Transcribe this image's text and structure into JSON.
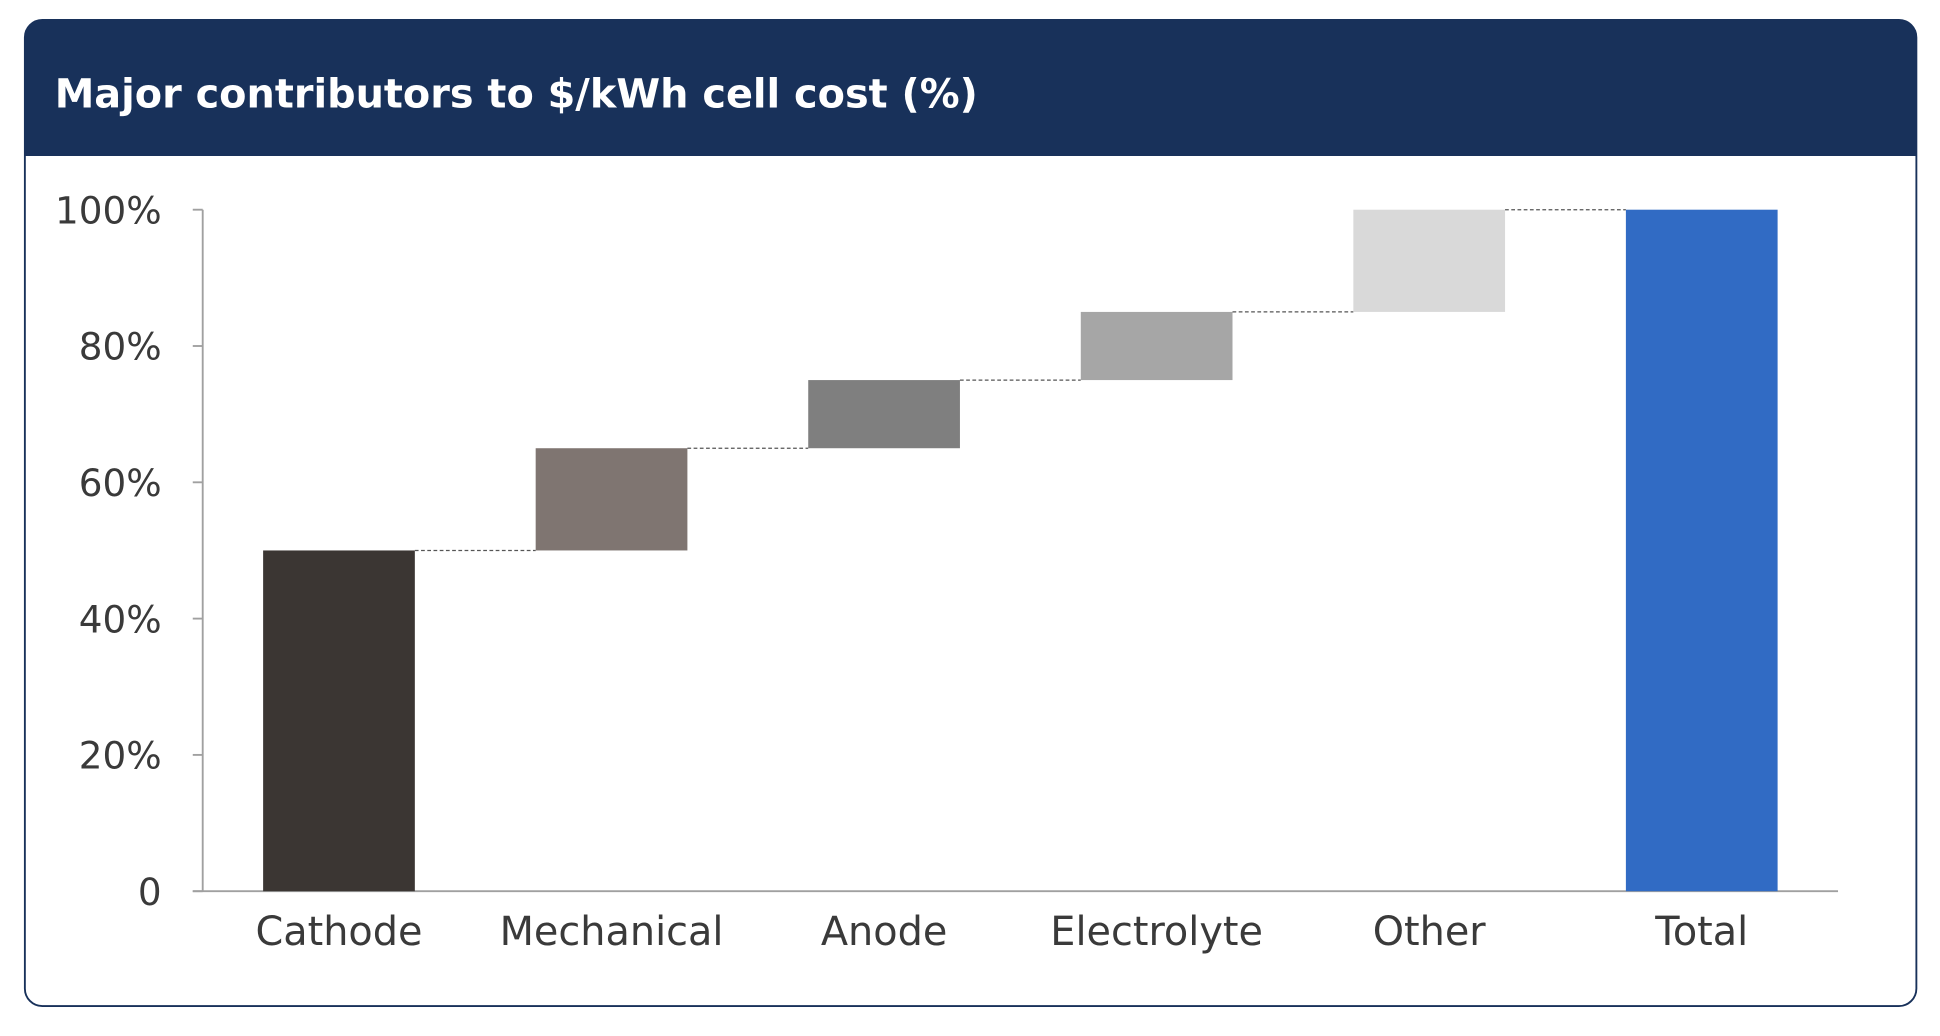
{
  "chart_data": {
    "type": "waterfall",
    "title": "Major contributors to $/kWh cell cost (%)",
    "categories": [
      "Cathode",
      "Mechanical",
      "Anode",
      "Electrolyte",
      "Other",
      "Total"
    ],
    "values": [
      50,
      15,
      10,
      10,
      15,
      100
    ],
    "is_total": [
      false,
      false,
      false,
      false,
      false,
      true
    ],
    "colors": [
      "#3b3633",
      "#7f7571",
      "#7f7f7f",
      "#a6a6a6",
      "#d9d9d9",
      "#316bc4"
    ],
    "ylim": [
      0,
      100
    ],
    "yticks": [
      0,
      20,
      40,
      60,
      80,
      100
    ],
    "ytick_labels": [
      "0",
      "20%",
      "40%",
      "60%",
      "80%",
      "100%"
    ],
    "xlabel": "",
    "ylabel": "",
    "grid": false,
    "connectors": "dashed"
  },
  "colors": {
    "header": "#18315a",
    "text": "#3a3a3a",
    "axis": "#a0a0a0"
  }
}
